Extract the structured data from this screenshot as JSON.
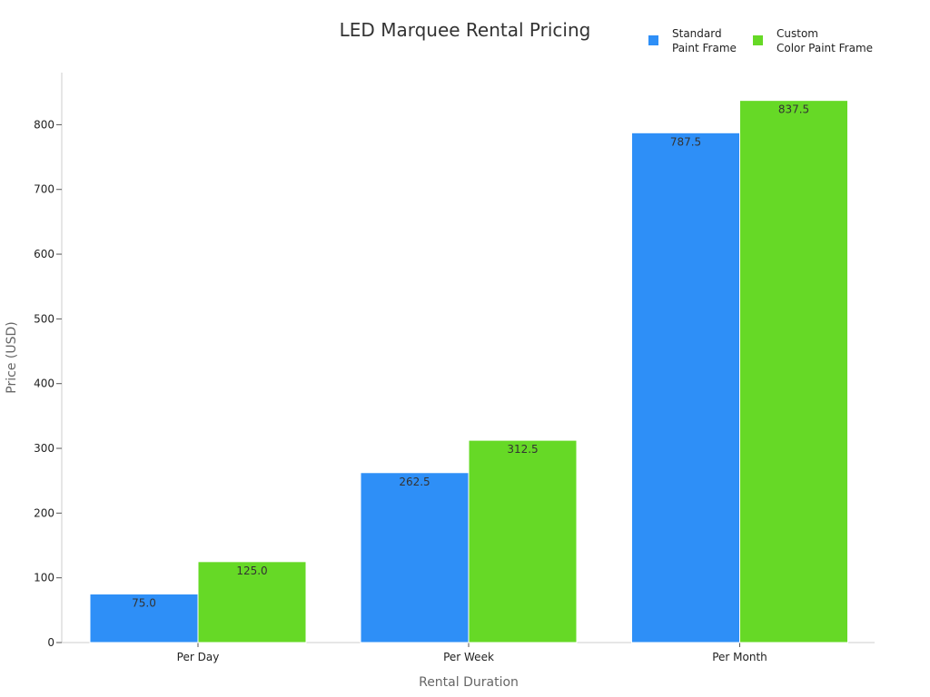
{
  "chart_data": {
    "type": "bar",
    "title": "LED Marquee Rental Pricing",
    "xlabel": "Rental Duration",
    "ylabel": "Price (USD)",
    "categories": [
      "Per Day",
      "Per Week",
      "Per Month"
    ],
    "series": [
      {
        "name": "Standard Paint Frame",
        "legend_lines": [
          "Standard",
          "Paint Frame"
        ],
        "color": "#2E8FF7",
        "values": [
          75.0,
          262.5,
          787.5
        ],
        "value_labels": [
          "75.0",
          "262.5",
          "787.5"
        ]
      },
      {
        "name": "Custom Color Paint Frame",
        "legend_lines": [
          "Custom",
          "Color Paint Frame"
        ],
        "color": "#66D926",
        "values": [
          125.0,
          312.5,
          837.5
        ],
        "value_labels": [
          "125.0",
          "312.5",
          "837.5"
        ]
      }
    ],
    "ylim": [
      0,
      880
    ],
    "yticks": [
      0,
      100,
      200,
      300,
      400,
      500,
      600,
      700,
      800
    ],
    "ytick_labels": [
      "0",
      "100",
      "200",
      "300",
      "400",
      "500",
      "600",
      "700",
      "800"
    ],
    "grid": false,
    "legend_position": "top-right"
  }
}
